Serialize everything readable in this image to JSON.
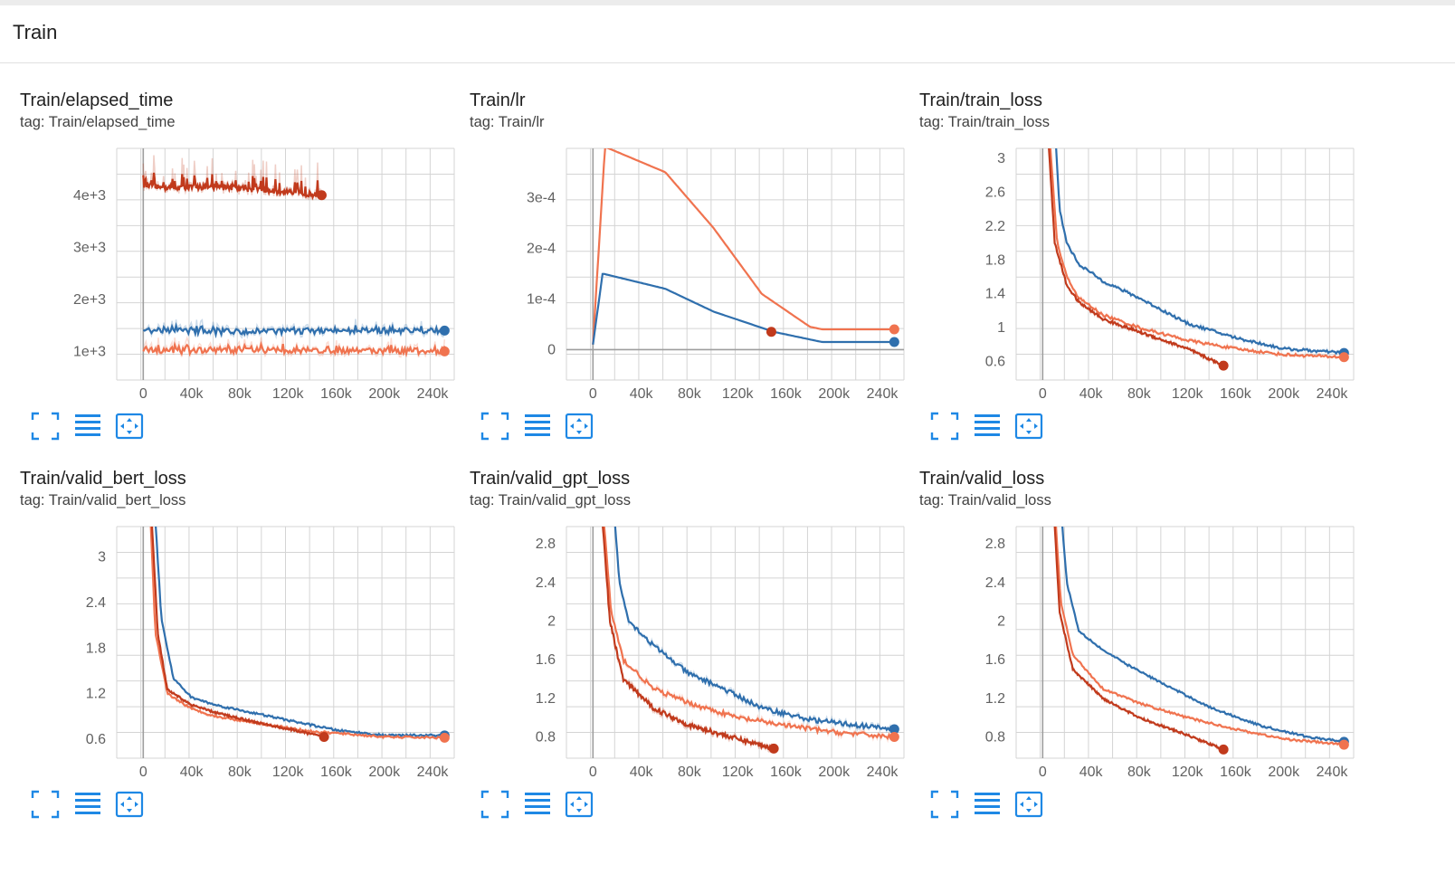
{
  "section": {
    "title": "Train"
  },
  "colors": {
    "orange": "#f0734f",
    "blue": "#2f6fad",
    "red": "#c13a1c",
    "grid": "#d4d4d4",
    "axis": "#9e9e9e",
    "icon": "#1e88e5"
  },
  "icons": [
    "fit-to-card-icon",
    "toggle-log-scale-icon",
    "fit-domain-icon"
  ],
  "cards": [
    {
      "title": "Train/elapsed_time",
      "tag": "tag: Train/elapsed_time",
      "x_ticks": [
        "0",
        "40k",
        "80k",
        "120k",
        "160k",
        "200k",
        "240k"
      ],
      "y_ticks": [
        "1e+3",
        "2e+3",
        "3e+3",
        "4e+3"
      ]
    },
    {
      "title": "Train/lr",
      "tag": "tag: Train/lr",
      "x_ticks": [
        "0",
        "40k",
        "80k",
        "120k",
        "160k",
        "200k",
        "240k"
      ],
      "y_ticks": [
        "0",
        "1e-4",
        "2e-4",
        "3e-4"
      ]
    },
    {
      "title": "Train/train_loss",
      "tag": "tag: Train/train_loss",
      "x_ticks": [
        "0",
        "40k",
        "80k",
        "120k",
        "160k",
        "200k",
        "240k"
      ],
      "y_ticks": [
        "0.6",
        "1",
        "1.4",
        "1.8",
        "2.2",
        "2.6",
        "3"
      ]
    },
    {
      "title": "Train/valid_bert_loss",
      "tag": "tag: Train/valid_bert_loss",
      "x_ticks": [
        "0",
        "40k",
        "80k",
        "120k",
        "160k",
        "200k",
        "240k"
      ],
      "y_ticks": [
        "0.6",
        "1.2",
        "1.8",
        "2.4",
        "3"
      ]
    },
    {
      "title": "Train/valid_gpt_loss",
      "tag": "tag: Train/valid_gpt_loss",
      "x_ticks": [
        "0",
        "40k",
        "80k",
        "120k",
        "160k",
        "200k",
        "240k"
      ],
      "y_ticks": [
        "0.8",
        "1.2",
        "1.6",
        "2",
        "2.4",
        "2.8"
      ]
    },
    {
      "title": "Train/valid_loss",
      "tag": "tag: Train/valid_loss",
      "x_ticks": [
        "0",
        "40k",
        "80k",
        "120k",
        "160k",
        "200k",
        "240k"
      ],
      "y_ticks": [
        "0.8",
        "1.2",
        "1.6",
        "2",
        "2.4",
        "2.8"
      ]
    }
  ],
  "chart_data": [
    {
      "type": "line",
      "xlim": [
        -22000,
        258000
      ],
      "ylim": [
        450,
        4900
      ],
      "noise": 0.9,
      "series": [
        {
          "color": "#c13a1c",
          "values": [
            [
              0,
              4200
            ],
            [
              10000,
              4150
            ],
            [
              70000,
              4150
            ],
            [
              148000,
              4000
            ]
          ]
        },
        {
          "color": "#2f6fad",
          "values": [
            [
              0,
              1400
            ],
            [
              60000,
              1380
            ],
            [
              120000,
              1390
            ],
            [
              180000,
              1400
            ],
            [
              250000,
              1400
            ]
          ]
        },
        {
          "color": "#f0734f",
          "values": [
            [
              0,
              1000
            ],
            [
              80000,
              1020
            ],
            [
              160000,
              1020
            ],
            [
              250000,
              1000
            ]
          ]
        }
      ]
    },
    {
      "type": "line",
      "xlim": [
        -22000,
        258000
      ],
      "ylim": [
        -6e-05,
        0.000397
      ],
      "noise": 0,
      "series": [
        {
          "color": "#f0734f",
          "values": [
            [
              0,
              1e-05
            ],
            [
              10000,
              0.0004
            ],
            [
              60000,
              0.00035
            ],
            [
              100000,
              0.00024
            ],
            [
              140000,
              0.00011
            ],
            [
              180000,
              4.5e-05
            ],
            [
              190000,
              4e-05
            ],
            [
              250000,
              4e-05
            ]
          ]
        },
        {
          "color": "#2f6fad",
          "values": [
            [
              0,
              1e-05
            ],
            [
              8000,
              0.00015
            ],
            [
              60000,
              0.00012
            ],
            [
              100000,
              7.5e-05
            ],
            [
              150000,
              3.5e-05
            ],
            [
              190000,
              1.5e-05
            ],
            [
              250000,
              1.5e-05
            ]
          ]
        },
        {
          "color": "#c13a1c",
          "values": [
            [
              148000,
              3.5e-05
            ]
          ]
        }
      ]
    },
    {
      "type": "line",
      "xlim": [
        -22000,
        258000
      ],
      "ylim": [
        0.38,
        3.12
      ],
      "noise": 0.4,
      "series": [
        {
          "color": "#2f6fad",
          "values": [
            [
              10000,
              3.4
            ],
            [
              14000,
              2.4
            ],
            [
              20000,
              2.0
            ],
            [
              30000,
              1.75
            ],
            [
              50000,
              1.55
            ],
            [
              80000,
              1.35
            ],
            [
              120000,
              1.05
            ],
            [
              160000,
              0.88
            ],
            [
              200000,
              0.75
            ],
            [
              250000,
              0.7
            ]
          ]
        },
        {
          "color": "#f0734f",
          "values": [
            [
              5000,
              3.4
            ],
            [
              12000,
              2.0
            ],
            [
              20000,
              1.6
            ],
            [
              30000,
              1.35
            ],
            [
              50000,
              1.15
            ],
            [
              80000,
              1.0
            ],
            [
              120000,
              0.85
            ],
            [
              160000,
              0.75
            ],
            [
              200000,
              0.68
            ],
            [
              250000,
              0.65
            ]
          ]
        },
        {
          "color": "#c13a1c",
          "values": [
            [
              4000,
              3.4
            ],
            [
              10000,
              2.0
            ],
            [
              20000,
              1.5
            ],
            [
              30000,
              1.3
            ],
            [
              50000,
              1.1
            ],
            [
              80000,
              0.95
            ],
            [
              120000,
              0.75
            ],
            [
              150000,
              0.55
            ]
          ]
        }
      ]
    },
    {
      "type": "line",
      "xlim": [
        -22000,
        258000
      ],
      "ylim": [
        0.35,
        3.4
      ],
      "noise": 0.3,
      "series": [
        {
          "color": "#2f6fad",
          "values": [
            [
              10000,
              3.5
            ],
            [
              15000,
              2.2
            ],
            [
              25000,
              1.4
            ],
            [
              40000,
              1.15
            ],
            [
              60000,
              1.05
            ],
            [
              90000,
              0.95
            ],
            [
              120000,
              0.85
            ],
            [
              160000,
              0.72
            ],
            [
              200000,
              0.65
            ],
            [
              250000,
              0.65
            ]
          ]
        },
        {
          "color": "#f0734f",
          "values": [
            [
              6000,
              3.5
            ],
            [
              10000,
              2.0
            ],
            [
              20000,
              1.2
            ],
            [
              40000,
              1.0
            ],
            [
              60000,
              0.9
            ],
            [
              100000,
              0.8
            ],
            [
              140000,
              0.7
            ],
            [
              160000,
              0.68
            ],
            [
              200000,
              0.63
            ],
            [
              250000,
              0.62
            ]
          ]
        },
        {
          "color": "#c13a1c",
          "values": [
            [
              7000,
              3.5
            ],
            [
              12000,
              2.0
            ],
            [
              20000,
              1.25
            ],
            [
              40000,
              1.05
            ],
            [
              60000,
              0.95
            ],
            [
              100000,
              0.8
            ],
            [
              130000,
              0.7
            ],
            [
              150000,
              0.63
            ]
          ]
        }
      ]
    },
    {
      "type": "line",
      "xlim": [
        -22000,
        258000
      ],
      "ylim": [
        0.58,
        2.98
      ],
      "noise": 0.7,
      "series": [
        {
          "color": "#2f6fad",
          "values": [
            [
              17000,
              3.2
            ],
            [
              22000,
              2.4
            ],
            [
              30000,
              2.0
            ],
            [
              50000,
              1.75
            ],
            [
              80000,
              1.45
            ],
            [
              100000,
              1.35
            ],
            [
              140000,
              1.1
            ],
            [
              180000,
              0.98
            ],
            [
              220000,
              0.92
            ],
            [
              250000,
              0.88
            ]
          ]
        },
        {
          "color": "#f0734f",
          "values": [
            [
              8000,
              3.2
            ],
            [
              15000,
              2.1
            ],
            [
              25000,
              1.6
            ],
            [
              50000,
              1.3
            ],
            [
              80000,
              1.15
            ],
            [
              120000,
              1.0
            ],
            [
              160000,
              0.92
            ],
            [
              200000,
              0.85
            ],
            [
              250000,
              0.8
            ]
          ]
        },
        {
          "color": "#c13a1c",
          "values": [
            [
              7000,
              3.2
            ],
            [
              14000,
              2.0
            ],
            [
              25000,
              1.4
            ],
            [
              50000,
              1.1
            ],
            [
              80000,
              0.92
            ],
            [
              120000,
              0.78
            ],
            [
              150000,
              0.68
            ]
          ]
        }
      ]
    },
    {
      "type": "line",
      "xlim": [
        -22000,
        258000
      ],
      "ylim": [
        0.58,
        2.98
      ],
      "noise": 0.3,
      "series": [
        {
          "color": "#2f6fad",
          "values": [
            [
              15000,
              3.2
            ],
            [
              20000,
              2.4
            ],
            [
              30000,
              1.9
            ],
            [
              50000,
              1.7
            ],
            [
              70000,
              1.55
            ],
            [
              100000,
              1.35
            ],
            [
              140000,
              1.1
            ],
            [
              180000,
              0.92
            ],
            [
              220000,
              0.8
            ],
            [
              250000,
              0.75
            ]
          ]
        },
        {
          "color": "#f0734f",
          "values": [
            [
              10000,
              3.2
            ],
            [
              15000,
              2.2
            ],
            [
              25000,
              1.65
            ],
            [
              50000,
              1.3
            ],
            [
              80000,
              1.15
            ],
            [
              120000,
              1.0
            ],
            [
              160000,
              0.88
            ],
            [
              200000,
              0.78
            ],
            [
              250000,
              0.72
            ]
          ]
        },
        {
          "color": "#c13a1c",
          "values": [
            [
              9000,
              3.2
            ],
            [
              14000,
              2.1
            ],
            [
              25000,
              1.5
            ],
            [
              50000,
              1.2
            ],
            [
              80000,
              1.0
            ],
            [
              120000,
              0.82
            ],
            [
              150000,
              0.67
            ]
          ]
        }
      ]
    }
  ]
}
